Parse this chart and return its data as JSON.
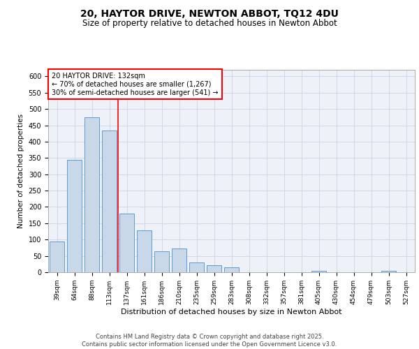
{
  "title_line1": "20, HAYTOR DRIVE, NEWTON ABBOT, TQ12 4DU",
  "title_line2": "Size of property relative to detached houses in Newton Abbot",
  "xlabel": "Distribution of detached houses by size in Newton Abbot",
  "ylabel": "Number of detached properties",
  "categories": [
    "39sqm",
    "64sqm",
    "88sqm",
    "113sqm",
    "137sqm",
    "161sqm",
    "186sqm",
    "210sqm",
    "235sqm",
    "259sqm",
    "283sqm",
    "308sqm",
    "332sqm",
    "357sqm",
    "381sqm",
    "405sqm",
    "430sqm",
    "454sqm",
    "479sqm",
    "503sqm",
    "527sqm"
  ],
  "values": [
    95,
    345,
    475,
    435,
    180,
    128,
    65,
    72,
    30,
    22,
    15,
    0,
    0,
    0,
    0,
    5,
    0,
    0,
    0,
    4,
    0
  ],
  "bar_color": "#c8d8e8",
  "bar_edge_color": "#5b9bd5",
  "grid_color": "#d0d8e8",
  "background_color": "#eef2f8",
  "vline_color": "red",
  "annotation_text": "20 HAYTOR DRIVE: 132sqm\n← 70% of detached houses are smaller (1,267)\n30% of semi-detached houses are larger (541) →",
  "annotation_box_color": "white",
  "annotation_box_edge_color": "red",
  "footer_text": "Contains HM Land Registry data © Crown copyright and database right 2025.\nContains public sector information licensed under the Open Government Licence v3.0.",
  "ylim": [
    0,
    620
  ],
  "yticks": [
    0,
    50,
    100,
    150,
    200,
    250,
    300,
    350,
    400,
    450,
    500,
    550,
    600
  ]
}
